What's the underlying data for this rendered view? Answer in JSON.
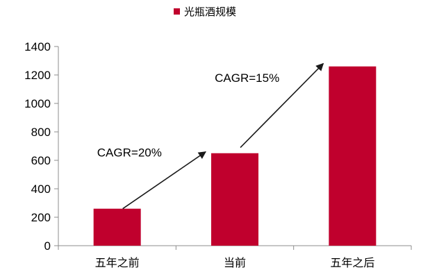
{
  "chart_data": {
    "type": "bar",
    "title": "",
    "xlabel": "",
    "ylabel": "",
    "categories": [
      "五年之前",
      "当前",
      "五年之后"
    ],
    "series": [
      {
        "name": "光瓶酒规模",
        "values": [
          260,
          650,
          1260
        ]
      }
    ],
    "ylim": [
      0,
      1400
    ],
    "yticks": [
      0,
      200,
      400,
      600,
      800,
      1000,
      1200,
      1400
    ],
    "grid": false,
    "legend": "top-center",
    "colors": {
      "bar": "#C0002D",
      "axis": "#8C8C8C",
      "arrow": "#1a1a1a"
    },
    "annotations": [
      {
        "text": "CAGR=20%",
        "from": "五年之前",
        "to": "当前",
        "arrow_start_value": 260,
        "arrow_end_value": 660
      },
      {
        "text": "CAGR=15%",
        "from": "当前",
        "to": "五年之后",
        "arrow_start_value": 690,
        "arrow_end_value": 1280
      }
    ]
  }
}
